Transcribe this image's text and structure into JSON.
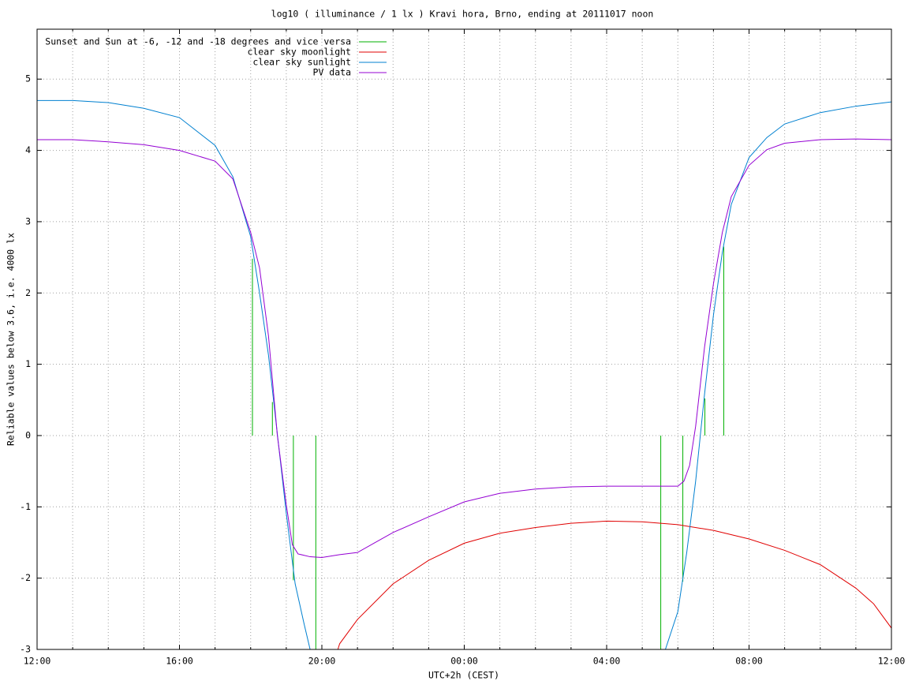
{
  "chart_data": {
    "type": "line",
    "title": "log10 ( illuminance / 1 lx ) Kravi hora, Brno, ending at 20111017 noon",
    "x_label": "UTC+2h (CEST)",
    "y_label": "Reliable values below 3.6, i.e. 4000 lx",
    "xlim": [
      12,
      36
    ],
    "ylim": [
      -3,
      5.7
    ],
    "xticks": [
      {
        "value": 12,
        "label": "12:00"
      },
      {
        "value": 16,
        "label": "16:00"
      },
      {
        "value": 20,
        "label": "20:00"
      },
      {
        "value": 24,
        "label": "00:00"
      },
      {
        "value": 28,
        "label": "04:00"
      },
      {
        "value": 32,
        "label": "08:00"
      },
      {
        "value": 36,
        "label": "12:00"
      }
    ],
    "xminorticks": [
      13,
      14,
      15,
      17,
      18,
      19,
      21,
      22,
      23,
      25,
      26,
      27,
      29,
      30,
      31,
      33,
      34,
      35
    ],
    "yticks": [
      -3,
      -2,
      -1,
      0,
      1,
      2,
      3,
      4,
      5
    ],
    "grid": true,
    "legend": "top-left",
    "series": [
      {
        "name": "Sunset and Sun at -6, -12 and -18 degrees and vice versa",
        "color": "#00b000",
        "style": "impulses",
        "x": [
          18.05,
          18.61,
          19.2,
          19.83,
          29.52,
          30.14,
          30.76,
          31.29
        ],
        "values": [
          2.48,
          0.47,
          -2.03,
          -3,
          -3,
          -2.05,
          0.52,
          2.65
        ]
      },
      {
        "name": "clear sky moonlight",
        "color": "#e00000",
        "style": "lines",
        "x": [
          20.45,
          20.5,
          21,
          22,
          23,
          24,
          25,
          26,
          27,
          28,
          29,
          30,
          31,
          32,
          33,
          34,
          35,
          35.5,
          36
        ],
        "values": [
          -3,
          -2.92,
          -2.58,
          -2.08,
          -1.75,
          -1.51,
          -1.37,
          -1.29,
          -1.23,
          -1.2,
          -1.21,
          -1.25,
          -1.33,
          -1.45,
          -1.61,
          -1.81,
          -2.14,
          -2.36,
          -2.7
        ]
      },
      {
        "name": "clear sky sunlight",
        "color": "#0080d0",
        "style": "lines",
        "x": [
          12,
          13,
          14,
          15,
          16,
          17,
          17.5,
          18,
          18.25,
          18.5,
          18.75,
          19,
          19.25,
          19.5,
          19.67,
          25,
          29.65,
          30,
          30.25,
          30.5,
          30.75,
          31,
          31.25,
          31.5,
          32,
          32.5,
          33,
          34,
          35,
          36
        ],
        "values": [
          4.7,
          4.7,
          4.67,
          4.59,
          4.46,
          4.07,
          3.63,
          2.79,
          2.0,
          1.13,
          0.02,
          -1.09,
          -2.08,
          -2.64,
          -3,
          null,
          -3,
          -2.47,
          -1.64,
          -0.64,
          0.58,
          1.69,
          2.57,
          3.24,
          3.9,
          4.18,
          4.37,
          4.53,
          4.62,
          4.68
        ]
      },
      {
        "name": "PV data",
        "color": "#9400d3",
        "style": "lines",
        "x": [
          12,
          13,
          14,
          15,
          16,
          17,
          17.5,
          18,
          18.25,
          18.5,
          18.75,
          19,
          19.17,
          19.33,
          19.67,
          20,
          20.5,
          21,
          21.5,
          22,
          23,
          24,
          25,
          26,
          27,
          28,
          29,
          30,
          30.17,
          30.33,
          30.5,
          30.75,
          31,
          31.25,
          31.5,
          32,
          32.5,
          33,
          34,
          35,
          36
        ],
        "values": [
          4.15,
          4.15,
          4.12,
          4.08,
          4.0,
          3.85,
          3.6,
          2.85,
          2.35,
          1.4,
          0.0,
          -0.97,
          -1.53,
          -1.66,
          -1.7,
          -1.71,
          -1.67,
          -1.64,
          -1.5,
          -1.36,
          -1.14,
          -0.93,
          -0.81,
          -0.75,
          -0.72,
          -0.71,
          -0.71,
          -0.71,
          -0.64,
          -0.42,
          0.13,
          1.24,
          2.13,
          2.85,
          3.35,
          3.79,
          4.01,
          4.1,
          4.15,
          4.16,
          4.15
        ]
      }
    ]
  }
}
